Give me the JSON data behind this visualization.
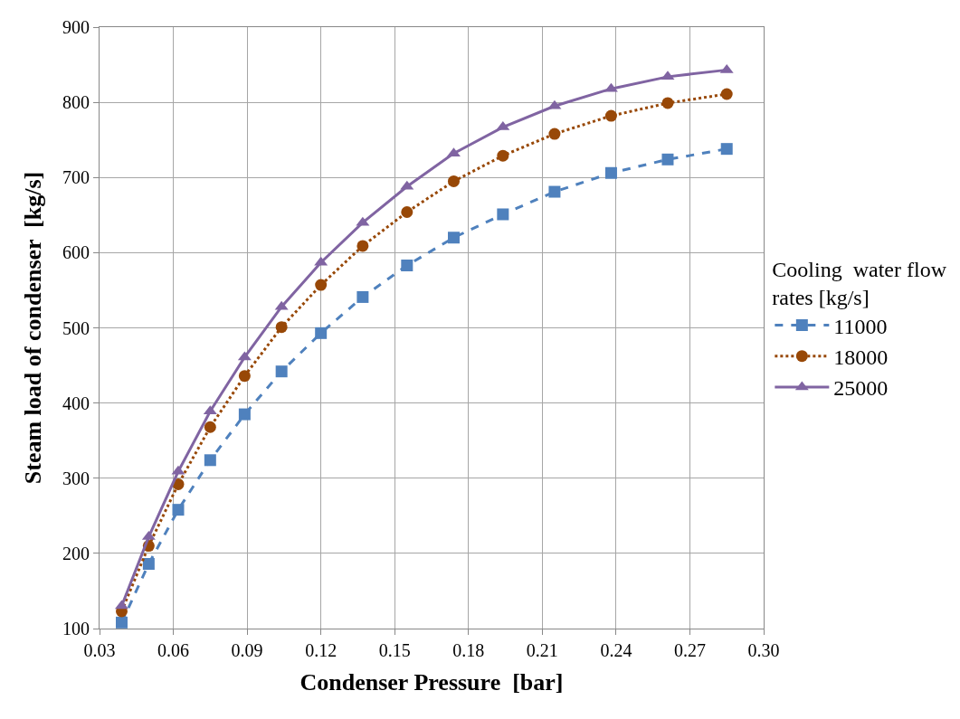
{
  "chart_data": {
    "type": "line",
    "xlabel": "Condenser Pressure  [bar]",
    "ylabel": "Steam load of condenser  [kg/s]",
    "legend_title": "Cooling  water flow rates [kg/s]",
    "x": [
      0.039,
      0.05,
      0.062,
      0.075,
      0.089,
      0.104,
      0.12,
      0.137,
      0.155,
      0.174,
      0.194,
      0.215,
      0.238,
      0.261,
      0.285
    ],
    "series": [
      {
        "name": "11000",
        "color": "#4f81bd",
        "marker": "square",
        "line_style": "dashed",
        "values": [
          108,
          186,
          258,
          324,
          385,
          442,
          493,
          541,
          583,
          620,
          651,
          681,
          706,
          724,
          738
        ]
      },
      {
        "name": "18000",
        "color": "#984807",
        "marker": "circle",
        "line_style": "dotted",
        "values": [
          123,
          210,
          292,
          368,
          436,
          501,
          557,
          609,
          654,
          695,
          729,
          758,
          782,
          799,
          811
        ]
      },
      {
        "name": "25000",
        "color": "#8064a2",
        "marker": "triangle",
        "line_style": "solid",
        "values": [
          130,
          222,
          309,
          389,
          461,
          528,
          587,
          640,
          688,
          732,
          767,
          795,
          818,
          834,
          843
        ]
      }
    ],
    "xlim": [
      0.03,
      0.3
    ],
    "xticks": [
      0.03,
      0.06,
      0.09,
      0.12,
      0.15,
      0.18,
      0.21,
      0.24,
      0.27,
      {
        "value": 0.3,
        "label": "0.30"
      }
    ],
    "ylim": [
      100,
      900
    ],
    "yticks": [
      100,
      200,
      300,
      400,
      500,
      600,
      700,
      800,
      900
    ],
    "grid": true,
    "legend": "right"
  }
}
